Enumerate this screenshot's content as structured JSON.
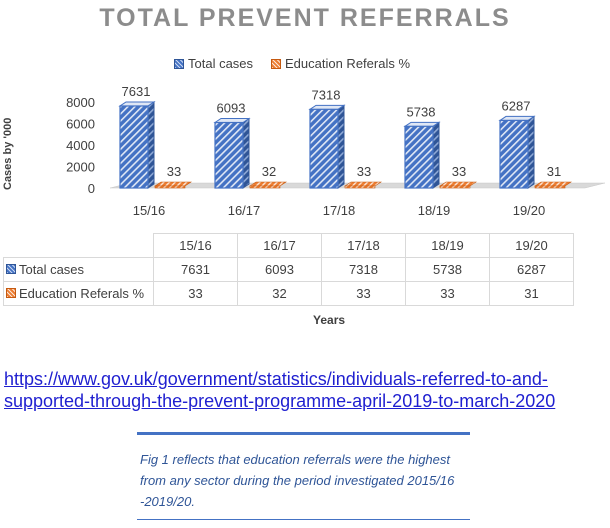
{
  "chart_data": {
    "type": "bar",
    "title": "TOTAL PREVENT REFERRALS",
    "categories": [
      "15/16",
      "16/17",
      "17/18",
      "18/19",
      "19/20"
    ],
    "series": [
      {
        "name": "Total cases",
        "values": [
          7631,
          6093,
          7318,
          5738,
          6287
        ],
        "color": "#4472c4"
      },
      {
        "name": "Education Referals %",
        "values": [
          33,
          32,
          33,
          33,
          31
        ],
        "color": "#ed7d31"
      }
    ],
    "xlabel": "Years",
    "ylabel": "Cases by '000",
    "ylim": [
      0,
      8000
    ],
    "yticks": [
      "0",
      "2000",
      "4000",
      "6000",
      "8000"
    ],
    "legend": "top-center"
  },
  "table": {
    "header": [
      "15/16",
      "16/17",
      "17/18",
      "18/19",
      "19/20"
    ],
    "rows": [
      {
        "label": "Total cases",
        "values": [
          "7631",
          "6093",
          "7318",
          "5738",
          "6287"
        ]
      },
      {
        "label": "Education Referals %",
        "values": [
          "33",
          "32",
          "33",
          "33",
          "31"
        ]
      }
    ]
  },
  "source_link": "https://www.gov.uk/government/statistics/individuals-referred-to-and-supported-through-the-prevent-programme-april-2019-to-march-2020",
  "caption": "Fig 1 reflects that education referrals were the highest from any sector during the period investigated 2015/16 -2019/20."
}
